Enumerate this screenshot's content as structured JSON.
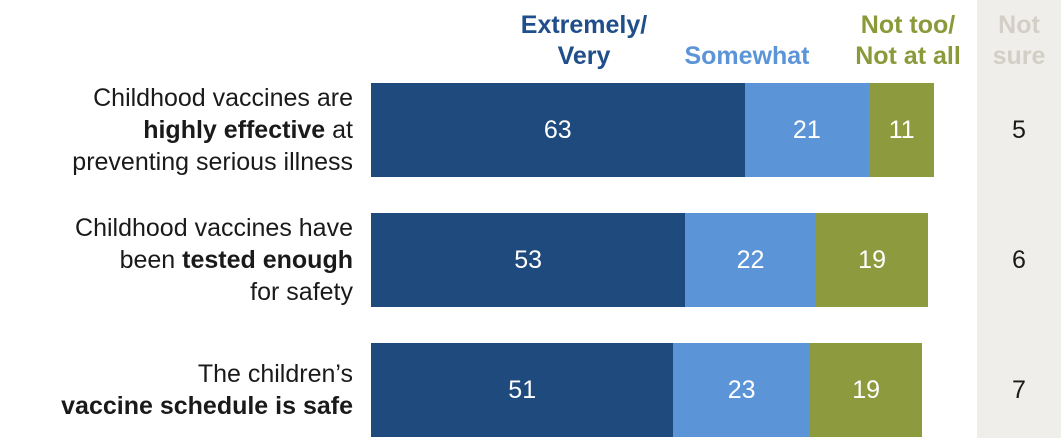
{
  "chart_data": {
    "type": "bar",
    "orientation": "horizontal",
    "stacked": true,
    "column_headers": [
      {
        "line1": "Extremely/",
        "line2": "Very",
        "color": "#1f4e8a"
      },
      {
        "line1": "",
        "line2": "Somewhat",
        "color": "#5b95d8"
      },
      {
        "line1": "Not too/",
        "line2": "Not at all",
        "color": "#8a9a3a"
      },
      {
        "line1": "Not",
        "line2": "sure",
        "color": "#d8d4cc"
      }
    ],
    "categories": [
      {
        "lines": [
          [
            "Childhood vaccines are",
            ""
          ],
          [
            "highly effective",
            " at"
          ],
          [
            "preventing serious illness",
            ""
          ]
        ],
        "bold_line": 1
      },
      {
        "lines": [
          [
            "Childhood vaccines have",
            ""
          ],
          [
            "been ",
            "tested enough"
          ],
          [
            "for safety",
            ""
          ]
        ],
        "bold_line": 1
      },
      {
        "lines": [
          [
            "The children’s",
            ""
          ],
          [
            "vaccine schedule is safe",
            ""
          ]
        ],
        "bold_line": 1
      }
    ],
    "series": [
      {
        "name": "Extremely/Very",
        "values": [
          63,
          53,
          51
        ],
        "color": "#1f4a7e"
      },
      {
        "name": "Somewhat",
        "values": [
          21,
          22,
          23
        ],
        "color": "#5b95d8"
      },
      {
        "name": "Not too/Not at all",
        "values": [
          11,
          19,
          19
        ],
        "color": "#8d9b3e"
      }
    ],
    "not_sure": [
      5,
      6,
      7
    ],
    "xlim": [
      0,
      100
    ]
  }
}
